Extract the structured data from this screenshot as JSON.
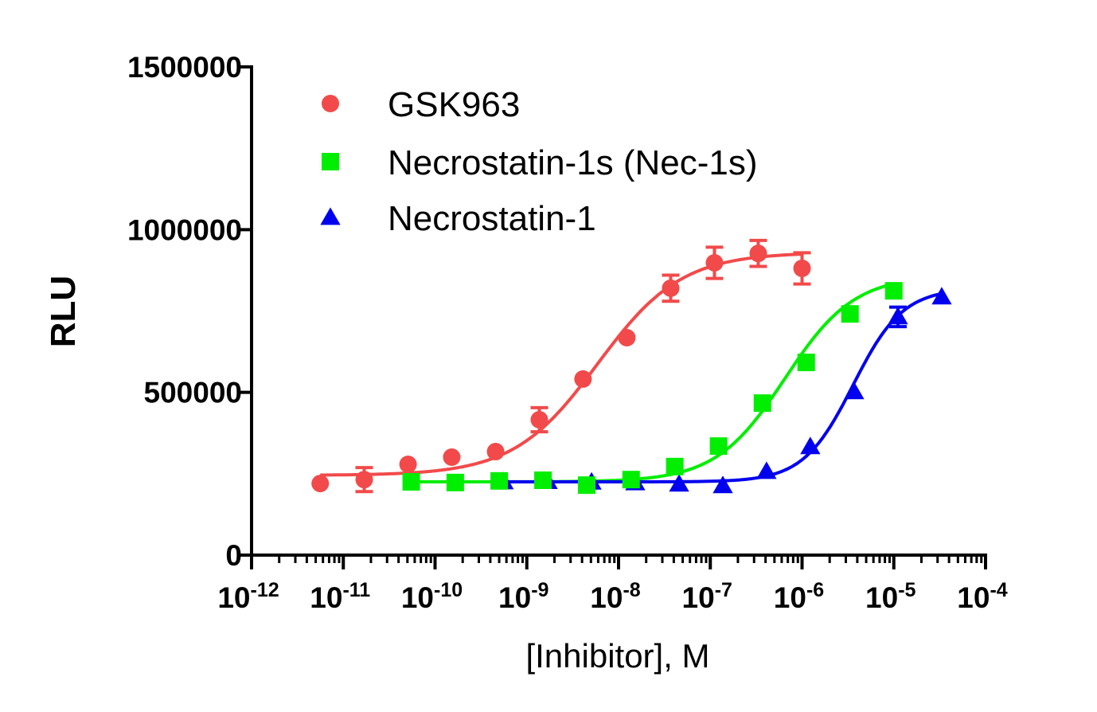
{
  "chart_data": {
    "type": "scatter",
    "xlabel": "[Inhibitor], M",
    "ylabel": "RLU",
    "x_scale": "log",
    "xlim": [
      1e-12,
      0.0001
    ],
    "ylim": [
      0,
      1500000
    ],
    "x_ticks": [
      -12,
      -11,
      -10,
      -9,
      -8,
      -7,
      -6,
      -5,
      -4
    ],
    "x_tick_base": "10",
    "y_ticks": [
      0,
      500000,
      1000000,
      1500000
    ],
    "y_tick_labels": [
      "0",
      "500000",
      "1000000",
      "1500000"
    ],
    "grid": false,
    "legend_position": "top-left",
    "series": [
      {
        "name": "GSK963",
        "marker": "circle",
        "color": "#f24a4a",
        "x": [
          5.6e-12,
          1.69e-11,
          5.08e-11,
          1.52e-10,
          4.57e-10,
          1.37e-09,
          4.1e-09,
          1.23e-08,
          3.7e-08,
          1.11e-07,
          3.33e-07,
          1e-06
        ],
        "y": [
          220000,
          232000,
          279000,
          301000,
          318000,
          416000,
          541000,
          668000,
          820000,
          898000,
          927000,
          881000
        ],
        "error": [
          0,
          37000,
          0,
          0,
          0,
          37000,
          0,
          0,
          40000,
          48000,
          40000,
          48000
        ],
        "fit": {
          "bottom": 245000,
          "top": 930000,
          "ec50": 5.9e-09,
          "hill": 0.95
        }
      },
      {
        "name": "Necrostatin-1s (Nec-1s)",
        "marker": "square",
        "color": "#00ee00",
        "x": [
          5.5e-11,
          1.66e-10,
          5e-10,
          1.5e-09,
          4.5e-09,
          1.37e-08,
          4.1e-08,
          1.23e-07,
          3.7e-07,
          1.11e-06,
          3.33e-06,
          1e-05
        ],
        "y": [
          225000,
          223000,
          228000,
          230000,
          215000,
          232000,
          272000,
          335000,
          467000,
          592000,
          741000,
          812000
        ],
        "error": [
          0,
          0,
          0,
          0,
          0,
          0,
          0,
          0,
          0,
          0,
          0,
          0
        ],
        "fit": {
          "bottom": 225000,
          "top": 860000,
          "ec50": 6.5e-07,
          "hill": 1.15
        }
      },
      {
        "name": "Necrostatin-1",
        "marker": "triangle",
        "color": "#0000ee",
        "x": [
          5.6e-10,
          1.69e-09,
          5.08e-09,
          1.52e-08,
          4.57e-08,
          1.37e-07,
          4.1e-07,
          1.23e-06,
          3.7e-06,
          1.11e-05,
          3.33e-05
        ],
        "y": [
          225000,
          226000,
          224000,
          222000,
          218000,
          213000,
          257000,
          333000,
          502000,
          732000,
          793000
        ],
        "error": [
          0,
          0,
          0,
          0,
          0,
          0,
          0,
          0,
          0,
          30000,
          0
        ],
        "fit": {
          "bottom": 225000,
          "top": 820000,
          "ec50": 3.6e-06,
          "hill": 1.6
        }
      }
    ]
  }
}
